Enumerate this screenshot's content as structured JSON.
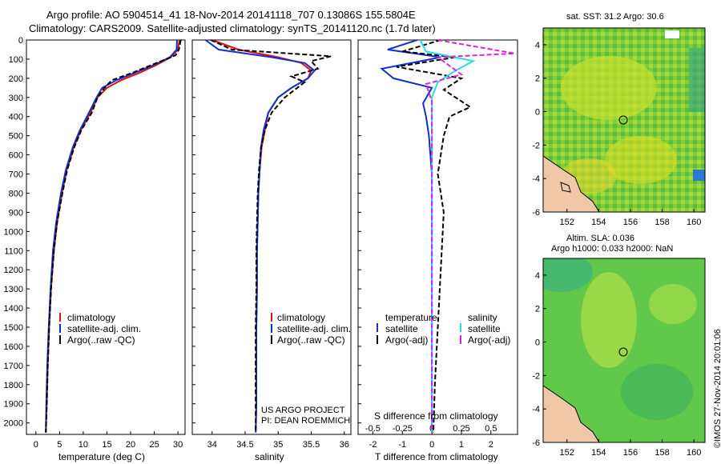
{
  "header": {
    "line1": "Argo profile: AO 5904514_41 18-Nov-2014 20141118_707 0.13086S 155.5804E",
    "line2": "Climatology: CARS2009. Satellite-adjusted climatology: synTS_20141120.nc (1.7d later)"
  },
  "legend": {
    "climatology": "climatology",
    "satellite_adj": "satellite-adj. clim.",
    "argo_raw": "Argo(..raw -QC)",
    "temperature": "temperature",
    "salinity": "salinity",
    "satellite": "satellite",
    "argo_adj": "Argo(-adj)"
  },
  "credits": {
    "project": "US ARGO PROJECT",
    "pi": "PI: DEAN ROEMMICH",
    "imos": "©IMOS 27-Nov-2014 20:01:06"
  },
  "maps": {
    "sst_title": "sat. SST: 31.2 Argo: 30.6",
    "sla_title1": "Altim. SLA: 0.036",
    "sla_title2": "Argo h1000: 0.033 h2000: NaN",
    "lon_ticks": [
      "152",
      "154",
      "156",
      "158",
      "160"
    ],
    "lat_ticks": [
      "4",
      "2",
      "0",
      "-2",
      "-4",
      "-6"
    ],
    "float_lon": 155.58,
    "float_lat": -0.13
  },
  "colors": {
    "climatology": "#e01010",
    "satellite_adj": "#1030d0",
    "argo": "#000000",
    "sat_salinity": "#20e0e0",
    "argo_salinity": "#e020e0"
  },
  "chart_data": [
    {
      "type": "line",
      "xlabel": "temperature (deg C)",
      "ylabel": "",
      "xlim": [
        -2,
        31.5
      ],
      "ylim": [
        2060,
        0
      ],
      "xticks": [
        "0",
        "5",
        "10",
        "15",
        "20",
        "25",
        "30"
      ],
      "yticks": [
        "0",
        "100",
        "200",
        "300",
        "400",
        "500",
        "600",
        "700",
        "800",
        "900",
        "1000",
        "1100",
        "1200",
        "1300",
        "1400",
        "1500",
        "1600",
        "1700",
        "1800",
        "1900",
        "2000"
      ],
      "series": [
        {
          "name": "climatology",
          "x": [
            30.3,
            30.0,
            28.5,
            25.5,
            22,
            18,
            15,
            13,
            11.5,
            9.5,
            8,
            6.5,
            5.5,
            4.5,
            3.8,
            3.2,
            2.8,
            2.5,
            2.3,
            2.1
          ],
          "y": [
            0,
            50,
            90,
            130,
            170,
            210,
            250,
            300,
            380,
            470,
            560,
            680,
            800,
            950,
            1100,
            1300,
            1500,
            1700,
            1900,
            2050
          ]
        },
        {
          "name": "satellite-adj. clim.",
          "x": [
            29.8,
            29.7,
            28.3,
            25,
            21,
            17,
            14,
            12.8,
            11.2,
            9.3,
            7.8,
            6.3,
            5.3,
            4.3,
            3.6,
            3.1,
            2.7,
            2.4,
            2.2,
            2.1
          ],
          "y": [
            0,
            50,
            90,
            130,
            170,
            210,
            250,
            300,
            380,
            470,
            560,
            680,
            800,
            950,
            1100,
            1300,
            1500,
            1700,
            1900,
            2050
          ]
        },
        {
          "name": "Argo(..raw -QC)",
          "x": [
            30.6,
            30.2,
            29.5,
            24.5,
            20.5,
            16,
            14.5,
            13,
            11.8,
            9.6,
            8.1,
            6.6,
            5.6,
            4.5,
            3.8,
            3.2,
            2.8,
            2.5,
            2.3,
            2.1
          ],
          "y": [
            0,
            50,
            80,
            130,
            170,
            210,
            250,
            300,
            380,
            470,
            560,
            680,
            800,
            950,
            1100,
            1300,
            1500,
            1700,
            1900,
            2050
          ]
        }
      ]
    },
    {
      "type": "line",
      "xlabel": "salinity",
      "ylabel": "",
      "xlim": [
        33.7,
        36.1
      ],
      "ylim": [
        2060,
        0
      ],
      "xticks": [
        "34",
        "34.5",
        "35",
        "35.5",
        "36"
      ],
      "series": [
        {
          "name": "climatology",
          "x": [
            34.0,
            34.4,
            35.0,
            35.35,
            35.5,
            35.45,
            35.2,
            35.0,
            34.85,
            34.8,
            34.75,
            34.72,
            34.7,
            34.69,
            34.68,
            34.68,
            34.67,
            34.67,
            34.67,
            34.66
          ],
          "y": [
            0,
            50,
            90,
            120,
            160,
            200,
            250,
            300,
            380,
            470,
            560,
            680,
            800,
            950,
            1100,
            1300,
            1500,
            1700,
            1900,
            2050
          ]
        },
        {
          "name": "satellite-adj. clim.",
          "x": [
            33.9,
            34.1,
            34.9,
            35.4,
            35.55,
            35.45,
            35.2,
            35.0,
            34.85,
            34.78,
            34.74,
            34.72,
            34.7,
            34.69,
            34.68,
            34.68,
            34.67,
            34.67,
            34.67,
            34.66
          ],
          "y": [
            0,
            50,
            90,
            120,
            160,
            200,
            250,
            300,
            380,
            470,
            560,
            680,
            800,
            950,
            1100,
            1300,
            1500,
            1700,
            1900,
            2050
          ]
        },
        {
          "name": "Argo(..raw -QC)",
          "x": [
            33.98,
            34.3,
            35.8,
            35.5,
            35.6,
            35.2,
            35.4,
            35.1,
            34.9,
            34.8,
            34.74,
            34.71,
            34.69,
            34.68,
            34.67,
            34.67,
            34.66,
            34.66,
            34.66,
            34.66
          ],
          "y": [
            0,
            50,
            85,
            110,
            150,
            190,
            220,
            300,
            380,
            470,
            560,
            680,
            800,
            950,
            1100,
            1300,
            1500,
            1700,
            1900,
            2050
          ]
        }
      ]
    },
    {
      "type": "line",
      "xlabel": "T difference from climatology",
      "x2label": "S difference from climatology",
      "xlim": [
        -2.5,
        2.9
      ],
      "x2lim": [
        -0.625,
        0.725
      ],
      "ylim": [
        2060,
        0
      ],
      "xticks": [
        "-2",
        "-1",
        "0",
        "1",
        "2"
      ],
      "x2ticks": [
        "-0.5",
        "-0.25",
        "0",
        "0.25",
        "0.5"
      ],
      "series": [
        {
          "name": "satellite",
          "group": "temperature",
          "x": [
            -0.5,
            -1.5,
            0.3,
            -1.7,
            -1.3,
            0.0,
            -0.3,
            -0.2,
            -0.1,
            0.0,
            0.0,
            0.0,
            0.0,
            0.0,
            0.0
          ],
          "y": [
            0,
            50,
            90,
            150,
            200,
            250,
            330,
            400,
            500,
            700,
            900,
            1200,
            1500,
            1800,
            2050
          ]
        },
        {
          "name": "Argo(-adj)",
          "group": "temperature",
          "x": [
            0.3,
            -1.0,
            0.8,
            -1.2,
            1.0,
            0.4,
            1.3,
            0.6,
            0.4,
            0.2,
            0.4,
            0.3,
            0.2,
            0.1,
            0.05
          ],
          "y": [
            0,
            60,
            90,
            140,
            200,
            260,
            350,
            400,
            500,
            700,
            900,
            1200,
            1500,
            1800,
            2050
          ]
        },
        {
          "name": "satellite",
          "group": "salinity",
          "x": [
            -0.1,
            -0.05,
            0.35,
            0.2,
            0.05,
            0.0,
            0.0,
            0.0,
            0.0,
            0.0,
            0.0
          ],
          "y": [
            0,
            60,
            110,
            160,
            220,
            300,
            500,
            800,
            1200,
            1600,
            2050
          ]
        },
        {
          "name": "Argo(-adj)",
          "group": "salinity",
          "x": [
            0.05,
            0.7,
            0.05,
            0.25,
            -0.05,
            0.0,
            0.0,
            0.0,
            0.0,
            0.0,
            0.0
          ],
          "y": [
            0,
            70,
            90,
            180,
            230,
            320,
            500,
            800,
            1200,
            1600,
            2050
          ]
        }
      ]
    }
  ]
}
